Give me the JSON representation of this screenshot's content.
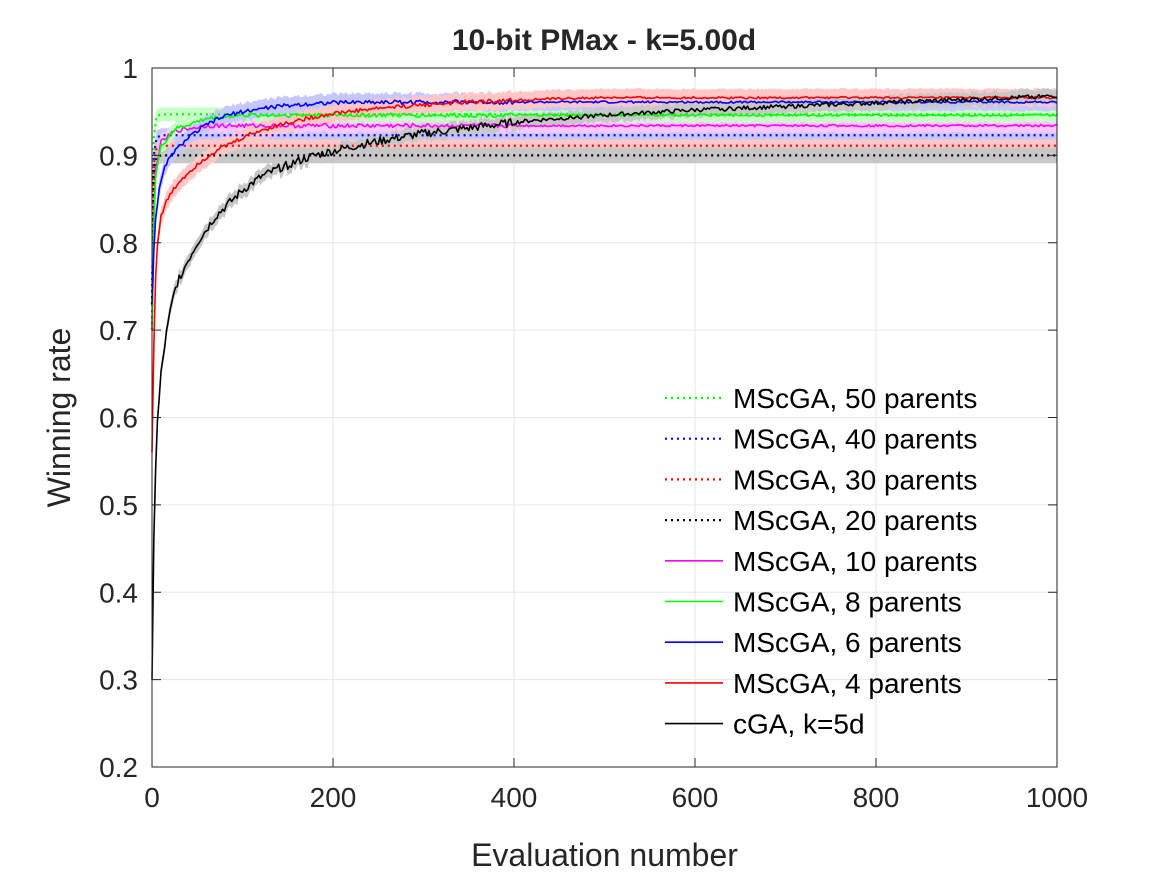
{
  "chart_data": {
    "type": "line",
    "title": "10-bit PMax - k=5.00d",
    "xlabel": "Evaluation number",
    "ylabel": "Winning rate",
    "xlim": [
      0,
      1000
    ],
    "ylim": [
      0.2,
      1
    ],
    "xticks": [
      0,
      200,
      400,
      600,
      800,
      1000
    ],
    "yticks": [
      0.2,
      0.3,
      0.4,
      0.5,
      0.6,
      0.7,
      0.8,
      0.9,
      1
    ],
    "xtick_labels": [
      "0",
      "200",
      "400",
      "600",
      "800",
      "1000"
    ],
    "ytick_labels": [
      "0.2",
      "0.3",
      "0.4",
      "0.5",
      "0.6",
      "0.7",
      "0.8",
      "0.9",
      "1"
    ],
    "grid": true,
    "legend_position": "lower-right",
    "series": [
      {
        "name": "MScGA, 50 parents",
        "color": "#00ff00",
        "style": "dotted",
        "band": 0.008,
        "x": [
          0,
          2,
          5,
          10,
          1000
        ],
        "y": [
          0.7,
          0.92,
          0.945,
          0.947,
          0.947
        ]
      },
      {
        "name": "MScGA, 40 parents",
        "color": "#0000ff",
        "style": "dotted",
        "band": 0.008,
        "x": [
          0,
          2,
          5,
          10,
          1000
        ],
        "y": [
          0.73,
          0.9,
          0.92,
          0.923,
          0.923
        ]
      },
      {
        "name": "MScGA, 30 parents",
        "color": "#ff0000",
        "style": "dotted",
        "band": 0.007,
        "x": [
          0,
          2,
          5,
          10,
          1000
        ],
        "y": [
          0.7,
          0.89,
          0.908,
          0.911,
          0.911
        ]
      },
      {
        "name": "MScGA, 20 parents",
        "color": "#000000",
        "style": "dotted",
        "band": 0.009,
        "x": [
          0,
          2,
          5,
          10,
          1000
        ],
        "y": [
          0.73,
          0.88,
          0.898,
          0.9,
          0.9
        ]
      },
      {
        "name": "MScGA, 10 parents",
        "color": "#ff00ff",
        "style": "solid",
        "band": 0.008,
        "x": [
          0,
          3,
          10,
          25,
          60,
          1000
        ],
        "y": [
          0.7,
          0.88,
          0.915,
          0.928,
          0.934,
          0.934
        ]
      },
      {
        "name": "MScGA, 8 parents",
        "color": "#00ff00",
        "style": "solid",
        "band": 0.008,
        "x": [
          0,
          3,
          10,
          25,
          60,
          100,
          1000
        ],
        "y": [
          0.7,
          0.87,
          0.91,
          0.93,
          0.942,
          0.946,
          0.946
        ]
      },
      {
        "name": "MScGA, 6 parents",
        "color": "#0000ff",
        "style": "solid",
        "band": 0.01,
        "x": [
          0,
          3,
          8,
          15,
          25,
          40,
          60,
          80,
          100,
          130,
          160,
          190,
          230,
          1000
        ],
        "y": [
          0.73,
          0.82,
          0.86,
          0.89,
          0.905,
          0.92,
          0.935,
          0.945,
          0.95,
          0.955,
          0.958,
          0.96,
          0.961,
          0.961
        ]
      },
      {
        "name": "MScGA, 4 parents",
        "color": "#ff0000",
        "style": "solid",
        "band": 0.01,
        "x": [
          0,
          3,
          6,
          10,
          15,
          20,
          30,
          40,
          50,
          70,
          90,
          110,
          140,
          170,
          200,
          250,
          300,
          350,
          400,
          450,
          500,
          1000
        ],
        "y": [
          0.56,
          0.74,
          0.8,
          0.83,
          0.845,
          0.855,
          0.87,
          0.88,
          0.89,
          0.905,
          0.915,
          0.925,
          0.935,
          0.942,
          0.948,
          0.954,
          0.958,
          0.961,
          0.963,
          0.965,
          0.966,
          0.966
        ]
      },
      {
        "name": "cGA, k=5d",
        "color": "#000000",
        "style": "solid",
        "band": 0.008,
        "x": [
          0,
          2,
          5,
          10,
          15,
          20,
          25,
          30,
          40,
          50,
          60,
          70,
          80,
          90,
          100,
          120,
          140,
          160,
          180,
          200,
          230,
          260,
          300,
          340,
          380,
          420,
          460,
          500,
          550,
          600,
          650,
          700,
          750,
          800,
          850,
          900,
          950,
          1000
        ],
        "y": [
          0.3,
          0.46,
          0.58,
          0.65,
          0.69,
          0.72,
          0.745,
          0.76,
          0.78,
          0.8,
          0.815,
          0.83,
          0.84,
          0.85,
          0.86,
          0.875,
          0.885,
          0.893,
          0.9,
          0.905,
          0.912,
          0.918,
          0.925,
          0.93,
          0.935,
          0.94,
          0.943,
          0.946,
          0.949,
          0.952,
          0.954,
          0.956,
          0.958,
          0.96,
          0.962,
          0.964,
          0.966,
          0.968
        ]
      }
    ]
  }
}
